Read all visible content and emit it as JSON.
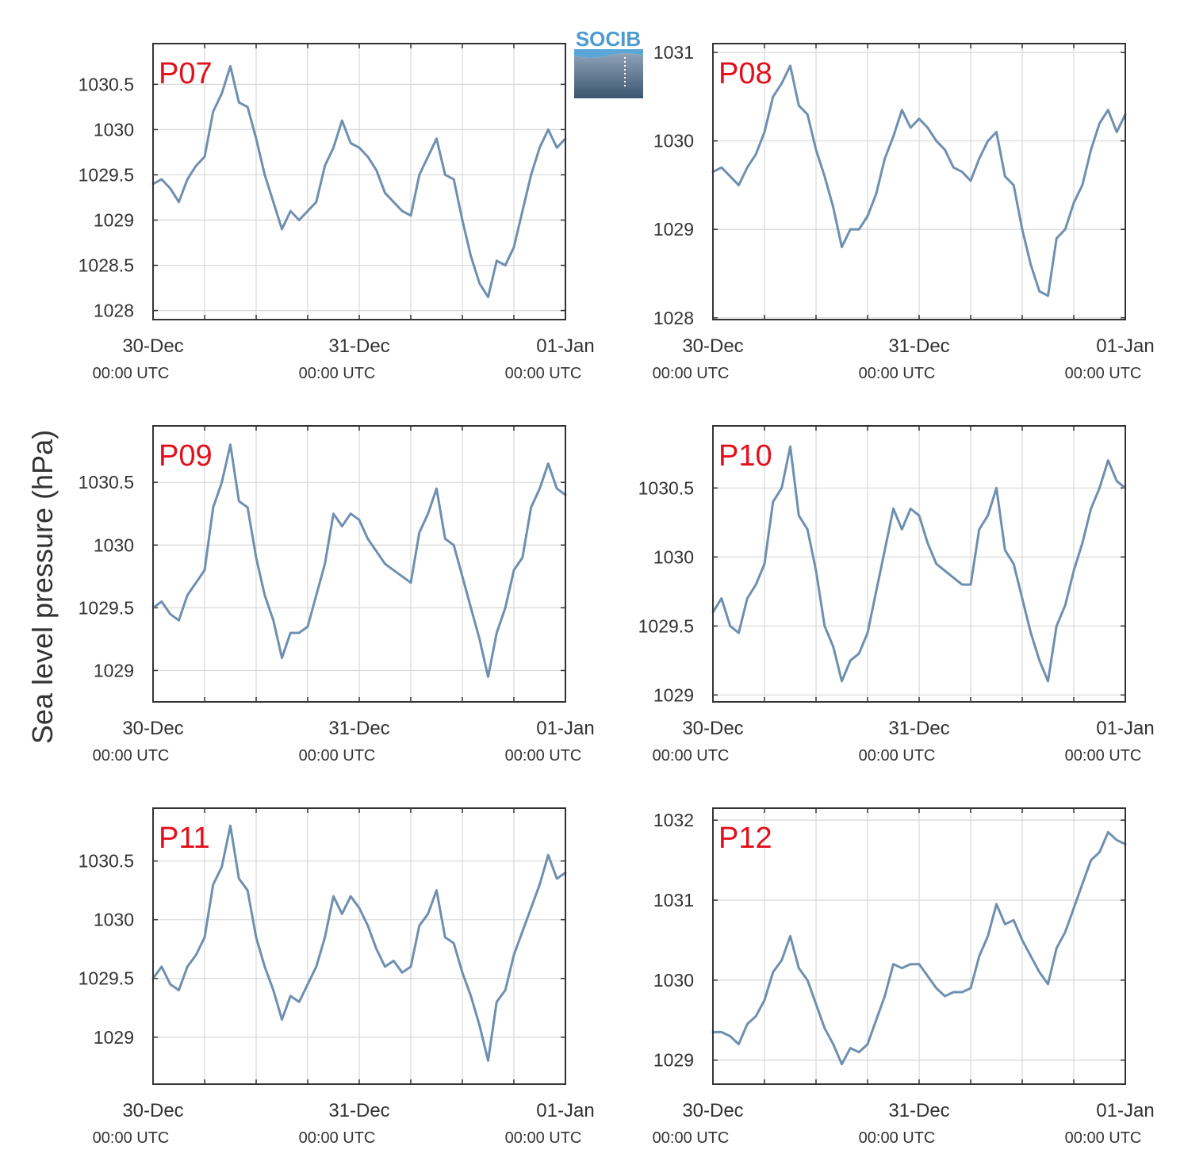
{
  "figure": {
    "ylabel": "Sea level pressure (hPa)",
    "logo_text": "SOCIB"
  },
  "colors": {
    "series_line": "#6f8fb0",
    "panel_label": "#e3101c",
    "grid": "#d9d9d9",
    "axis": "#333333"
  },
  "chart_data": [
    {
      "type": "line",
      "title": "P07",
      "xlabel": "",
      "ylabel": "Sea level pressure (hPa)",
      "x_ticks": [
        {
          "t": 0,
          "date": "30-Dec",
          "time": "00:00 UTC"
        },
        {
          "t": 24,
          "date": "31-Dec",
          "time": "00:00 UTC"
        },
        {
          "t": 48,
          "date": "01-Jan",
          "time": "00:00 UTC"
        }
      ],
      "x_unit": "hours since 30-Dec 00:00 UTC",
      "xlim": [
        0,
        48
      ],
      "ylim": [
        1027.9,
        1030.95
      ],
      "yticks": [
        1028,
        1028.5,
        1029,
        1029.5,
        1030,
        1030.5
      ],
      "grid": true,
      "series": [
        {
          "x": [
            0,
            1,
            2,
            3,
            4,
            5,
            6,
            7,
            8,
            9,
            10,
            11,
            12,
            13,
            14,
            15,
            16,
            17,
            18,
            19,
            20,
            21,
            22,
            23,
            24,
            25,
            26,
            27,
            28,
            29,
            30,
            31,
            32,
            33,
            34,
            35,
            36,
            37,
            38,
            39,
            40,
            41,
            42,
            43,
            44,
            45,
            46,
            47,
            48
          ],
          "values": [
            1029.4,
            1029.45,
            1029.35,
            1029.2,
            1029.45,
            1029.6,
            1029.7,
            1030.2,
            1030.4,
            1030.7,
            1030.3,
            1030.25,
            1029.9,
            1029.5,
            1029.2,
            1028.9,
            1029.1,
            1029.0,
            1029.1,
            1029.2,
            1029.6,
            1029.8,
            1030.1,
            1029.85,
            1029.8,
            1029.7,
            1029.55,
            1029.3,
            1029.2,
            1029.1,
            1029.05,
            1029.5,
            1029.7,
            1029.9,
            1029.5,
            1029.45,
            1029.0,
            1028.6,
            1028.3,
            1028.15,
            1028.55,
            1028.5,
            1028.7,
            1029.1,
            1029.5,
            1029.8,
            1030.0,
            1029.8,
            1029.9
          ]
        }
      ]
    },
    {
      "type": "line",
      "title": "P08",
      "xlabel": "",
      "ylabel": "Sea level pressure (hPa)",
      "x_ticks": [
        {
          "t": 0,
          "date": "30-Dec",
          "time": "00:00 UTC"
        },
        {
          "t": 24,
          "date": "31-Dec",
          "time": "00:00 UTC"
        },
        {
          "t": 48,
          "date": "01-Jan",
          "time": "00:00 UTC"
        }
      ],
      "x_unit": "hours since 30-Dec 00:00 UTC",
      "xlim": [
        0,
        48
      ],
      "ylim": [
        1027.98,
        1031.1
      ],
      "yticks": [
        1028,
        1029,
        1030,
        1031
      ],
      "grid": true,
      "series": [
        {
          "x": [
            0,
            1,
            2,
            3,
            4,
            5,
            6,
            7,
            8,
            9,
            10,
            11,
            12,
            13,
            14,
            15,
            16,
            17,
            18,
            19,
            20,
            21,
            22,
            23,
            24,
            25,
            26,
            27,
            28,
            29,
            30,
            31,
            32,
            33,
            34,
            35,
            36,
            37,
            38,
            39,
            40,
            41,
            42,
            43,
            44,
            45,
            46,
            47,
            48
          ],
          "values": [
            1029.65,
            1029.7,
            1029.6,
            1029.5,
            1029.7,
            1029.85,
            1030.1,
            1030.5,
            1030.65,
            1030.85,
            1030.4,
            1030.3,
            1029.9,
            1029.6,
            1029.25,
            1028.8,
            1029.0,
            1029.0,
            1029.15,
            1029.4,
            1029.8,
            1030.05,
            1030.35,
            1030.15,
            1030.25,
            1030.15,
            1030.0,
            1029.9,
            1029.7,
            1029.65,
            1029.55,
            1029.8,
            1030.0,
            1030.1,
            1029.6,
            1029.5,
            1029.0,
            1028.6,
            1028.3,
            1028.25,
            1028.9,
            1029.0,
            1029.3,
            1029.5,
            1029.9,
            1030.2,
            1030.35,
            1030.1,
            1030.3
          ]
        }
      ]
    },
    {
      "type": "line",
      "title": "P09",
      "xlabel": "",
      "ylabel": "Sea level pressure (hPa)",
      "x_ticks": [
        {
          "t": 0,
          "date": "30-Dec",
          "time": "00:00 UTC"
        },
        {
          "t": 24,
          "date": "31-Dec",
          "time": "00:00 UTC"
        },
        {
          "t": 48,
          "date": "01-Jan",
          "time": "00:00 UTC"
        }
      ],
      "x_unit": "hours since 30-Dec 00:00 UTC",
      "xlim": [
        0,
        48
      ],
      "ylim": [
        1028.75,
        1030.95
      ],
      "yticks": [
        1029,
        1029.5,
        1030,
        1030.5
      ],
      "grid": true,
      "series": [
        {
          "x": [
            0,
            1,
            2,
            3,
            4,
            5,
            6,
            7,
            8,
            9,
            10,
            11,
            12,
            13,
            14,
            15,
            16,
            17,
            18,
            19,
            20,
            21,
            22,
            23,
            24,
            25,
            26,
            27,
            28,
            29,
            30,
            31,
            32,
            33,
            34,
            35,
            36,
            37,
            38,
            39,
            40,
            41,
            42,
            43,
            44,
            45,
            46,
            47,
            48
          ],
          "values": [
            1029.5,
            1029.55,
            1029.45,
            1029.4,
            1029.6,
            1029.7,
            1029.8,
            1030.3,
            1030.5,
            1030.8,
            1030.35,
            1030.3,
            1029.9,
            1029.6,
            1029.4,
            1029.1,
            1029.3,
            1029.3,
            1029.35,
            1029.6,
            1029.85,
            1030.25,
            1030.15,
            1030.25,
            1030.2,
            1030.05,
            1029.95,
            1029.85,
            1029.8,
            1029.75,
            1029.7,
            1030.1,
            1030.25,
            1030.45,
            1030.05,
            1030.0,
            1029.75,
            1029.5,
            1029.25,
            1028.95,
            1029.3,
            1029.5,
            1029.8,
            1029.9,
            1030.3,
            1030.45,
            1030.65,
            1030.45,
            1030.4
          ]
        }
      ]
    },
    {
      "type": "line",
      "title": "P10",
      "xlabel": "",
      "ylabel": "Sea level pressure (hPa)",
      "x_ticks": [
        {
          "t": 0,
          "date": "30-Dec",
          "time": "00:00 UTC"
        },
        {
          "t": 24,
          "date": "31-Dec",
          "time": "00:00 UTC"
        },
        {
          "t": 48,
          "date": "01-Jan",
          "time": "00:00 UTC"
        }
      ],
      "x_unit": "hours since 30-Dec 00:00 UTC",
      "xlim": [
        0,
        48
      ],
      "ylim": [
        1028.95,
        1030.95
      ],
      "yticks": [
        1029,
        1029.5,
        1030,
        1030.5
      ],
      "grid": true,
      "series": [
        {
          "x": [
            0,
            1,
            2,
            3,
            4,
            5,
            6,
            7,
            8,
            9,
            10,
            11,
            12,
            13,
            14,
            15,
            16,
            17,
            18,
            19,
            20,
            21,
            22,
            23,
            24,
            25,
            26,
            27,
            28,
            29,
            30,
            31,
            32,
            33,
            34,
            35,
            36,
            37,
            38,
            39,
            40,
            41,
            42,
            43,
            44,
            45,
            46,
            47,
            48
          ],
          "values": [
            1029.6,
            1029.7,
            1029.5,
            1029.45,
            1029.7,
            1029.8,
            1029.95,
            1030.4,
            1030.5,
            1030.8,
            1030.3,
            1030.2,
            1029.9,
            1029.5,
            1029.35,
            1029.1,
            1029.25,
            1029.3,
            1029.45,
            1029.75,
            1030.05,
            1030.35,
            1030.2,
            1030.35,
            1030.3,
            1030.1,
            1029.95,
            1029.9,
            1029.85,
            1029.8,
            1029.8,
            1030.2,
            1030.3,
            1030.5,
            1030.05,
            1029.95,
            1029.7,
            1029.45,
            1029.25,
            1029.1,
            1029.5,
            1029.65,
            1029.9,
            1030.1,
            1030.35,
            1030.5,
            1030.7,
            1030.55,
            1030.5
          ]
        }
      ]
    },
    {
      "type": "line",
      "title": "P11",
      "xlabel": "",
      "ylabel": "Sea level pressure (hPa)",
      "x_ticks": [
        {
          "t": 0,
          "date": "30-Dec",
          "time": "00:00 UTC"
        },
        {
          "t": 24,
          "date": "31-Dec",
          "time": "00:00 UTC"
        },
        {
          "t": 48,
          "date": "01-Jan",
          "time": "00:00 UTC"
        }
      ],
      "x_unit": "hours since 30-Dec 00:00 UTC",
      "xlim": [
        0,
        48
      ],
      "ylim": [
        1028.6,
        1030.95
      ],
      "yticks": [
        1029,
        1029.5,
        1030,
        1030.5
      ],
      "grid": true,
      "series": [
        {
          "x": [
            0,
            1,
            2,
            3,
            4,
            5,
            6,
            7,
            8,
            9,
            10,
            11,
            12,
            13,
            14,
            15,
            16,
            17,
            18,
            19,
            20,
            21,
            22,
            23,
            24,
            25,
            26,
            27,
            28,
            29,
            30,
            31,
            32,
            33,
            34,
            35,
            36,
            37,
            38,
            39,
            40,
            41,
            42,
            43,
            44,
            45,
            46,
            47,
            48
          ],
          "values": [
            1029.5,
            1029.6,
            1029.45,
            1029.4,
            1029.6,
            1029.7,
            1029.85,
            1030.3,
            1030.45,
            1030.8,
            1030.35,
            1030.25,
            1029.85,
            1029.6,
            1029.4,
            1029.15,
            1029.35,
            1029.3,
            1029.45,
            1029.6,
            1029.85,
            1030.2,
            1030.05,
            1030.2,
            1030.1,
            1029.95,
            1029.75,
            1029.6,
            1029.65,
            1029.55,
            1029.6,
            1029.95,
            1030.05,
            1030.25,
            1029.85,
            1029.8,
            1029.55,
            1029.35,
            1029.1,
            1028.8,
            1029.3,
            1029.4,
            1029.7,
            1029.9,
            1030.1,
            1030.3,
            1030.55,
            1030.35,
            1030.4
          ]
        }
      ]
    },
    {
      "type": "line",
      "title": "P12",
      "xlabel": "",
      "ylabel": "Sea level pressure (hPa)",
      "x_ticks": [
        {
          "t": 0,
          "date": "30-Dec",
          "time": "00:00 UTC"
        },
        {
          "t": 24,
          "date": "31-Dec",
          "time": "00:00 UTC"
        },
        {
          "t": 48,
          "date": "01-Jan",
          "time": "00:00 UTC"
        }
      ],
      "x_unit": "hours since 30-Dec 00:00 UTC",
      "xlim": [
        0,
        48
      ],
      "ylim": [
        1028.7,
        1032.15
      ],
      "yticks": [
        1029,
        1030,
        1031,
        1032
      ],
      "grid": true,
      "series": [
        {
          "x": [
            0,
            1,
            2,
            3,
            4,
            5,
            6,
            7,
            8,
            9,
            10,
            11,
            12,
            13,
            14,
            15,
            16,
            17,
            18,
            19,
            20,
            21,
            22,
            23,
            24,
            25,
            26,
            27,
            28,
            29,
            30,
            31,
            32,
            33,
            34,
            35,
            36,
            37,
            38,
            39,
            40,
            41,
            42,
            43,
            44,
            45,
            46,
            47,
            48
          ],
          "values": [
            1029.35,
            1029.35,
            1029.3,
            1029.2,
            1029.45,
            1029.55,
            1029.75,
            1030.1,
            1030.25,
            1030.55,
            1030.15,
            1030.0,
            1029.7,
            1029.4,
            1029.2,
            1028.95,
            1029.15,
            1029.1,
            1029.2,
            1029.5,
            1029.8,
            1030.2,
            1030.15,
            1030.2,
            1030.2,
            1030.05,
            1029.9,
            1029.8,
            1029.85,
            1029.85,
            1029.9,
            1030.3,
            1030.55,
            1030.95,
            1030.7,
            1030.75,
            1030.5,
            1030.3,
            1030.1,
            1029.95,
            1030.4,
            1030.6,
            1030.9,
            1031.2,
            1031.5,
            1031.6,
            1031.85,
            1031.75,
            1031.7
          ]
        }
      ]
    }
  ]
}
